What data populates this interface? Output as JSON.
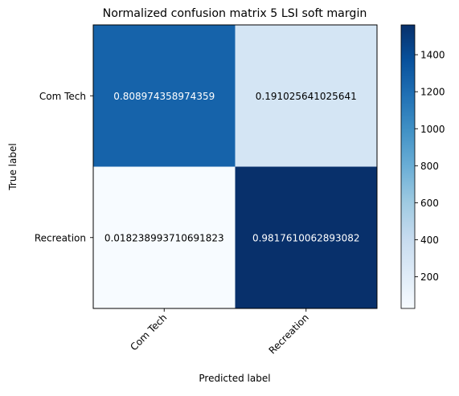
{
  "chart_data": {
    "type": "heatmap",
    "title": "Normalized confusion matrix 5 LSI soft margin",
    "xlabel": "Predicted label",
    "ylabel": "True label",
    "row_labels": [
      "Com Tech",
      "Recreation"
    ],
    "col_labels": [
      "Com Tech",
      "Recreation"
    ],
    "counts": [
      [
        1262,
        298
      ],
      [
        29,
        1561
      ]
    ],
    "cell_text": [
      [
        "0.808974358974359",
        "0.191025641025641"
      ],
      [
        "0.018238993710691823",
        "0.9817610062893082"
      ]
    ],
    "colormap": "Blues",
    "colorbar": {
      "range": [
        29,
        1561
      ],
      "ticks": [
        200,
        400,
        600,
        800,
        1000,
        1200,
        1400
      ]
    },
    "x_tick_rotation_deg": 45,
    "grid": false
  }
}
